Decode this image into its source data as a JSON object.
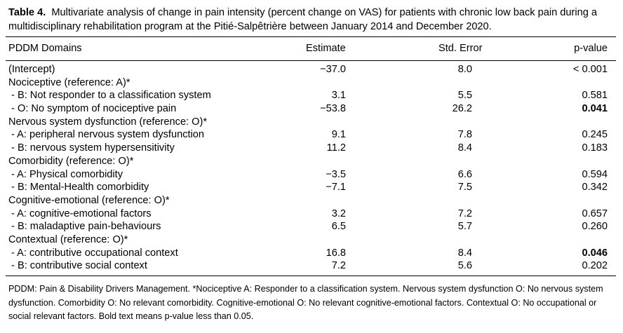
{
  "caption": {
    "label": "Table 4.",
    "text": "Multivariate analysis of change in pain intensity (percent change on VAS) for patients with chronic low back pain during a multidisciplinary rehabilitation program at the Pitié-Salpêtrière between January 2014 and December 2020."
  },
  "headers": {
    "domain": "PDDM Domains",
    "estimate": "Estimate",
    "std_error": "Std. Error",
    "p_value": "p-value"
  },
  "rows": [
    {
      "label": "(Intercept)",
      "estimate": "−37.0",
      "se": "8.0",
      "p": "< 0.001",
      "bold_p": false
    },
    {
      "label": "Nociceptive (reference: A)*",
      "estimate": "",
      "se": "",
      "p": "",
      "bold_p": false
    },
    {
      "label": " - B: Not responder to a classification system",
      "estimate": "3.1",
      "se": "5.5",
      "p": "0.581",
      "bold_p": false
    },
    {
      "label": " - O: No symptom of nociceptive pain",
      "estimate": "−53.8",
      "se": "26.2",
      "p": "0.041",
      "bold_p": true
    },
    {
      "label": "Nervous system dysfunction (reference: O)*",
      "estimate": "",
      "se": "",
      "p": "",
      "bold_p": false
    },
    {
      "label": " - A: peripheral nervous system dysfunction",
      "estimate": "9.1",
      "se": "7.8",
      "p": "0.245",
      "bold_p": false
    },
    {
      "label": " - B: nervous system hypersensitivity",
      "estimate": "11.2",
      "se": "8.4",
      "p": "0.183",
      "bold_p": false
    },
    {
      "label": "Comorbidity (reference: O)*",
      "estimate": "",
      "se": "",
      "p": "",
      "bold_p": false
    },
    {
      "label": " - A: Physical comorbidity",
      "estimate": "−3.5",
      "se": "6.6",
      "p": "0.594",
      "bold_p": false
    },
    {
      "label": " - B: Mental-Health comorbidity",
      "estimate": "−7.1",
      "se": "7.5",
      "p": "0.342",
      "bold_p": false
    },
    {
      "label": "Cognitive-emotional (reference: O)*",
      "estimate": "",
      "se": "",
      "p": "",
      "bold_p": false
    },
    {
      "label": " - A: cognitive-emotional factors",
      "estimate": "3.2",
      "se": "7.2",
      "p": "0.657",
      "bold_p": false
    },
    {
      "label": " - B: maladaptive pain-behaviours",
      "estimate": "6.5",
      "se": "5.7",
      "p": "0.260",
      "bold_p": false
    },
    {
      "label": "Contextual (reference: O)*",
      "estimate": "",
      "se": "",
      "p": "",
      "bold_p": false
    },
    {
      "label": " - A: contributive occupational context",
      "estimate": "16.8",
      "se": "8.4",
      "p": "0.046",
      "bold_p": true
    },
    {
      "label": " - B: contributive social context",
      "estimate": "7.2",
      "se": "5.6",
      "p": "0.202",
      "bold_p": false
    }
  ],
  "footnote": "PDDM: Pain & Disability Drivers Management. *Nociceptive A: Responder to a classification system. Nervous system dysfunction O: No nervous system dysfunction. Comorbidity O: No relevant comorbidity. Cognitive-emotional O: No relevant cognitive-emotional factors. Contextual O: No occupational or social relevant factors. Bold text means p-value less than 0.05."
}
